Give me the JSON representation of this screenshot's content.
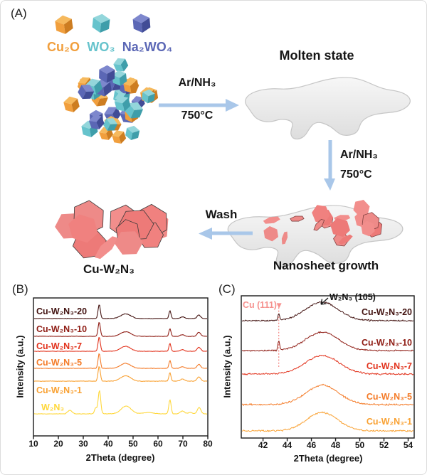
{
  "window": {
    "bg": "#ffffff",
    "border": "#dcdcdc"
  },
  "panelA": {
    "label": "(A)",
    "legend": {
      "items": [
        {
          "name": "Cu₂O",
          "color": "#f19f3d"
        },
        {
          "name": "WO₃",
          "color": "#66c3cc"
        },
        {
          "name": "Na₂WO₄",
          "color": "#5b67b5"
        }
      ]
    },
    "arrow_right": {
      "line1": "Ar/NH₃",
      "line2": "750°C"
    },
    "arrow_down": {
      "line1": "Ar/NH₃",
      "line2": "750°C"
    },
    "molten_label": "Molten state",
    "nanosheet_label": "Nanosheet growth",
    "wash_label": "Wash",
    "product_label": "Cu-W₂N₃",
    "arrow_color": "#a9c7e9",
    "sheet_color": "#f0817f"
  },
  "panelB": {
    "label": "(B)"
  },
  "panelC": {
    "label": "(C)"
  },
  "chart_data": [
    {
      "type": "line",
      "panel": "B",
      "title": "",
      "xlabel": "2Theta (degree)",
      "ylabel": "Intensity (a.u.)",
      "xlim": [
        10,
        80
      ],
      "xticks": [
        10,
        20,
        30,
        40,
        50,
        60,
        70,
        80
      ],
      "grid": false,
      "legend_position": "labels-inside-left",
      "series": [
        {
          "name": "Cu-W₂N₃-20",
          "color": "#431311",
          "peaks": [
            {
              "center": 36.4,
              "height": 1.0,
              "width": 0.45
            },
            {
              "center": 47.0,
              "height": 0.33,
              "width": 2.0
            },
            {
              "center": 64.8,
              "height": 0.55,
              "width": 0.4
            },
            {
              "center": 69.8,
              "height": 0.12,
              "width": 0.8
            },
            {
              "center": 76.4,
              "height": 0.25,
              "width": 0.7
            }
          ]
        },
        {
          "name": "Cu-W₂N₃-10",
          "color": "#8f1d15",
          "peaks": [
            {
              "center": 36.4,
              "height": 1.0,
              "width": 0.45
            },
            {
              "center": 47.0,
              "height": 0.33,
              "width": 2.0
            },
            {
              "center": 64.8,
              "height": 0.55,
              "width": 0.4
            },
            {
              "center": 69.8,
              "height": 0.12,
              "width": 0.8
            },
            {
              "center": 76.4,
              "height": 0.28,
              "width": 0.7
            }
          ]
        },
        {
          "name": "Cu-W₂N₃-7",
          "color": "#e2331d",
          "peaks": [
            {
              "center": 36.4,
              "height": 1.0,
              "width": 0.45
            },
            {
              "center": 47.0,
              "height": 0.35,
              "width": 2.0
            },
            {
              "center": 64.8,
              "height": 0.55,
              "width": 0.4
            },
            {
              "center": 69.8,
              "height": 0.12,
              "width": 0.8
            },
            {
              "center": 76.4,
              "height": 0.28,
              "width": 0.7
            }
          ]
        },
        {
          "name": "Cu-W₂N₃-5",
          "color": "#f47b28",
          "peaks": [
            {
              "center": 36.4,
              "height": 1.05,
              "width": 0.45
            },
            {
              "center": 47.0,
              "height": 0.35,
              "width": 2.0
            },
            {
              "center": 64.8,
              "height": 0.55,
              "width": 0.4
            },
            {
              "center": 69.8,
              "height": 0.12,
              "width": 0.8
            },
            {
              "center": 76.4,
              "height": 0.28,
              "width": 0.7
            }
          ]
        },
        {
          "name": "Cu-W₂N₃-1",
          "color": "#f9a132",
          "peaks": [
            {
              "center": 36.4,
              "height": 1.05,
              "width": 0.45
            },
            {
              "center": 47.0,
              "height": 0.38,
              "width": 2.0
            },
            {
              "center": 64.8,
              "height": 0.6,
              "width": 0.4
            },
            {
              "center": 69.8,
              "height": 0.15,
              "width": 0.8
            },
            {
              "center": 76.4,
              "height": 0.3,
              "width": 0.7
            }
          ]
        },
        {
          "name": "W₂N₃",
          "color": "#ffd83c",
          "peaks": [
            {
              "center": 24.6,
              "height": 0.25,
              "width": 0.9
            },
            {
              "center": 35.0,
              "height": 0.4,
              "width": 0.5
            },
            {
              "center": 36.5,
              "height": 1.65,
              "width": 0.5
            },
            {
              "center": 47.2,
              "height": 0.55,
              "width": 2.0
            },
            {
              "center": 56.0,
              "height": 0.1,
              "width": 2.0
            },
            {
              "center": 64.8,
              "height": 1.0,
              "width": 0.45
            },
            {
              "center": 69.8,
              "height": 0.2,
              "width": 0.9
            },
            {
              "center": 73.0,
              "height": 0.1,
              "width": 0.8
            },
            {
              "center": 76.5,
              "height": 0.45,
              "width": 0.7
            }
          ]
        }
      ]
    },
    {
      "type": "line",
      "panel": "C",
      "title": "",
      "xlabel": "2Theta (degree)",
      "ylabel": "Intensity (a.u.)",
      "xlim": [
        40.2,
        54.5
      ],
      "xticks": [
        42,
        44,
        46,
        48,
        50,
        52,
        54
      ],
      "grid": false,
      "legend_position": "labels-inside-right",
      "annotations": [
        {
          "text": "Cu (111)",
          "marker": "▾",
          "x": 43.3,
          "color": "#f6918e",
          "style": "dotted-vline"
        },
        {
          "text": "W₂N₃ (105)",
          "x": 46.85,
          "color": "#141414",
          "style": "arrow-to-peak"
        }
      ],
      "series": [
        {
          "name": "Cu-W₂N₃-20",
          "color": "#431311",
          "peaks": [
            {
              "center": 46.85,
              "height": 1.0,
              "width": 1.35
            },
            {
              "center": 43.3,
              "height": 0.33,
              "width": 0.07
            }
          ]
        },
        {
          "name": "Cu-W₂N₃-10",
          "color": "#8f1d15",
          "peaks": [
            {
              "center": 46.9,
              "height": 1.0,
              "width": 1.35
            },
            {
              "center": 43.3,
              "height": 0.5,
              "width": 0.07
            }
          ]
        },
        {
          "name": "Cu-W₂N₃-7",
          "color": "#e2331d",
          "peaks": [
            {
              "center": 46.9,
              "height": 1.0,
              "width": 1.4
            }
          ]
        },
        {
          "name": "Cu-W₂N₃-5",
          "color": "#f47b28",
          "peaks": [
            {
              "center": 46.9,
              "height": 1.05,
              "width": 1.35
            }
          ]
        },
        {
          "name": "Cu-W₂N₃-1",
          "color": "#f9a132",
          "peaks": [
            {
              "center": 46.9,
              "height": 1.0,
              "width": 1.3
            }
          ]
        }
      ]
    }
  ]
}
